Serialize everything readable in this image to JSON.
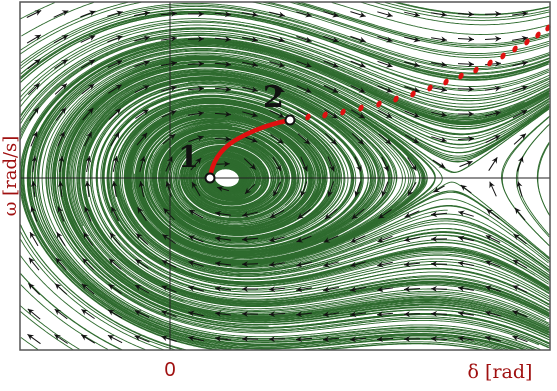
{
  "colors": {
    "streamline": "#2e6b2e",
    "arrow": "#111111",
    "trajectory": "#e01010",
    "axis_label": "#a01010",
    "frame": "#555555",
    "axes": "#222222"
  },
  "labels": {
    "y_axis": "ω [rad/s]",
    "x_axis": "δ [rad]",
    "x_origin_tick": "0",
    "point_1": "1",
    "point_2": "2"
  },
  "chart_data": {
    "type": "phase-portrait",
    "xlabel": "δ [rad]",
    "ylabel": "ω [rad/s]",
    "x_ticks": [
      "0"
    ],
    "legend": "none",
    "grid": false,
    "annotations": [
      "1",
      "2"
    ],
    "streamline_color": "#2e6b2e",
    "arrow_color": "#111111",
    "trajectory": {
      "style": "solid red segment from point 1 to point 2, then dotted red continuation toward top-right",
      "color": "#e01010"
    }
  }
}
